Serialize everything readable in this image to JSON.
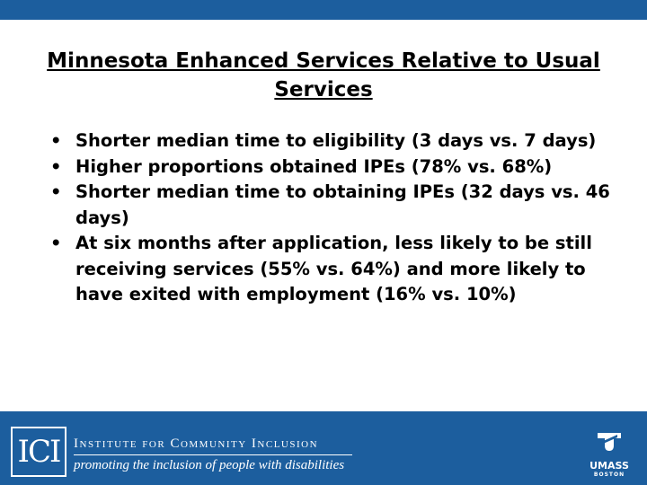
{
  "header": {
    "title": "Minnesota Enhanced Services Relative to Usual Services"
  },
  "bullets": [
    "Shorter median time to eligibility (3 days vs. 7 days)",
    "Higher proportions obtained IPEs (78% vs. 68%)",
    "Shorter median time to obtaining IPEs (32 days vs. 46 days)",
    "At six months after application, less likely to be still receiving services (55% vs. 64%) and more likely to have exited with employment (16% vs. 10%)"
  ],
  "footer": {
    "logo": "ICI",
    "org": "Institute for Community Inclusion",
    "tagline": "promoting the inclusion of people with disabilities",
    "university": "UMASS",
    "campus": "BOSTON"
  }
}
